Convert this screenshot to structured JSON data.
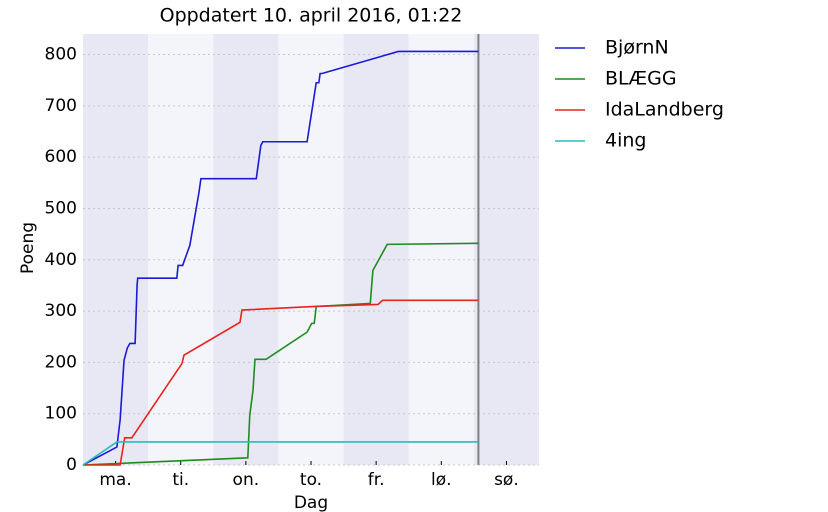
{
  "chart_data": {
    "type": "line",
    "title": "Oppdatert 10. april 2016, 01:22",
    "x_label": "Dag",
    "y_label": "Poeng",
    "xlim": [
      0,
      7
    ],
    "ylim": [
      0,
      840
    ],
    "xticks": [
      {
        "value": 0.5,
        "label": "ma."
      },
      {
        "value": 1.5,
        "label": "ti."
      },
      {
        "value": 2.5,
        "label": "on."
      },
      {
        "value": 3.5,
        "label": "to."
      },
      {
        "value": 4.5,
        "label": "fr."
      },
      {
        "value": 5.5,
        "label": "lø."
      },
      {
        "value": 6.5,
        "label": "sø."
      }
    ],
    "yticks": [
      0,
      100,
      200,
      300,
      400,
      500,
      600,
      700,
      800
    ],
    "grid": true,
    "legend": "outside-right",
    "vline_x": 6.07,
    "vline_color": "#808080",
    "series": [
      {
        "name": "BjørnN",
        "color": "#1a1ad4",
        "x": [
          0,
          0.52,
          0.57,
          0.63,
          0.68,
          0.72,
          0.8,
          0.83,
          0.84,
          1.44,
          1.46,
          1.53,
          1.64,
          1.78,
          1.81,
          2.66,
          2.73,
          2.76,
          3.44,
          3.58,
          3.62,
          3.64,
          3.67,
          4.84,
          6.07
        ],
        "values": [
          0,
          35,
          88,
          204,
          228,
          237,
          237,
          350,
          364,
          364,
          389,
          389,
          428,
          531,
          558,
          558,
          623,
          630,
          630,
          745,
          745,
          763,
          763,
          806,
          806
        ]
      },
      {
        "name": "BLÆGG",
        "color": "#1f8c1f",
        "x": [
          0,
          2.53,
          2.56,
          2.61,
          2.64,
          2.81,
          3.44,
          3.51,
          3.55,
          3.58,
          4.41,
          4.45,
          4.67,
          6.07
        ],
        "values": [
          0,
          14,
          97,
          146,
          206,
          206,
          259,
          276,
          276,
          309,
          315,
          379,
          430,
          432
        ]
      },
      {
        "name": "IdaLandberg",
        "color": "#e8231f",
        "x": [
          0,
          0.57,
          0.64,
          0.75,
          1.52,
          1.55,
          2.41,
          2.44,
          3.56,
          4.53,
          4.6,
          6.07
        ],
        "values": [
          0,
          0,
          53,
          53,
          198,
          214,
          278,
          302,
          309,
          313,
          321,
          321
        ]
      },
      {
        "name": "4ing",
        "color": "#1fbfbf",
        "x": [
          0,
          0.52,
          0.61,
          6.07
        ],
        "values": [
          0,
          45,
          45,
          45
        ]
      }
    ]
  }
}
